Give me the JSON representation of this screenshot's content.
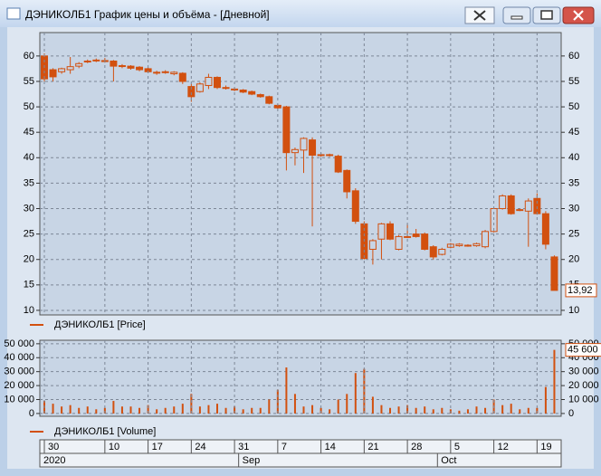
{
  "window": {
    "title": "ДЭНИКОЛБ1 График цены и объёма - [Дневной]"
  },
  "chart_data": [
    {
      "type": "candlestick",
      "series": [
        {
          "name": "ДЭНИКОЛБ1 [Price]",
          "color": "#d2500f",
          "open": [
            60,
            57.3,
            56.9,
            57.3,
            58,
            58.9,
            59.1,
            59.1,
            59,
            58,
            58,
            57.8,
            57.5,
            56.8,
            56.8,
            56.5,
            56.6,
            54,
            53,
            54.2,
            55.8,
            53.8,
            53.5,
            53.3,
            53,
            52.4,
            52,
            50.3,
            50,
            41,
            41.5,
            43.5,
            40.6,
            40.5,
            40.3,
            37.5,
            33.5,
            27,
            22,
            24,
            27,
            22,
            24.5,
            25,
            25,
            22.5,
            21,
            22.4,
            22.7,
            22.8,
            22.7,
            22.5,
            25.5,
            30,
            32.5,
            29.7,
            29.5,
            32,
            29,
            20.5
          ],
          "high": [
            60.5,
            57.6,
            57.7,
            59.8,
            58.8,
            59.3,
            59.5,
            59.6,
            59.2,
            58.4,
            58.2,
            58,
            57.7,
            57.1,
            57.2,
            57,
            56.8,
            54.5,
            54.8,
            56.5,
            56,
            54.2,
            53.8,
            53.5,
            53.2,
            52.6,
            52.2,
            50.5,
            50.2,
            42,
            44,
            44,
            40.9,
            40.8,
            40.6,
            37.7,
            34,
            27.5,
            24,
            27.2,
            27.5,
            24.8,
            27,
            26,
            25.3,
            22.8,
            22.3,
            23.2,
            23.2,
            23,
            23.3,
            25.8,
            30.2,
            32.8,
            32.8,
            30,
            32,
            33,
            29.5,
            20.8
          ],
          "low": [
            54.5,
            55,
            56.5,
            56.5,
            57.6,
            58.6,
            58.8,
            58.7,
            55,
            57.6,
            57.3,
            57,
            56.7,
            56.3,
            56.5,
            56.2,
            54.5,
            51,
            52.8,
            53.5,
            53.5,
            53.4,
            53.1,
            52.7,
            52.3,
            51.8,
            50.5,
            49.6,
            37.5,
            38.5,
            37,
            26.5,
            40.2,
            40.2,
            37,
            32,
            27,
            20,
            19,
            20,
            23.8,
            21.8,
            24.2,
            24.3,
            21.8,
            20,
            20.8,
            22.2,
            22.5,
            22.5,
            22.5,
            22.2,
            25.3,
            29.8,
            28.8,
            29.5,
            22.5,
            28.8,
            22,
            13.9
          ],
          "close": [
            55.5,
            55.9,
            57.5,
            57.9,
            58.5,
            59,
            59.2,
            58.9,
            58,
            58.1,
            57.6,
            57.3,
            56.9,
            56.7,
            56.9,
            56.8,
            55,
            52,
            54.5,
            55.8,
            53.8,
            53.7,
            53.4,
            52.9,
            52.5,
            52,
            50.7,
            49.8,
            41,
            41.6,
            43.8,
            40.5,
            40.5,
            40.6,
            37.2,
            33.3,
            27.5,
            20.2,
            23.7,
            27,
            24,
            24.5,
            24.5,
            24.5,
            22,
            20.5,
            22,
            23,
            23,
            22.8,
            23.1,
            25.5,
            30,
            32.5,
            29,
            29.8,
            31.5,
            29,
            23,
            13.92
          ],
          "value_labels": [
            null,
            null,
            null,
            null,
            null,
            null,
            null,
            null,
            null,
            null,
            null,
            null,
            null,
            null,
            null,
            null,
            null,
            null,
            null,
            null,
            null,
            null,
            null,
            null,
            null,
            null,
            null,
            null,
            null,
            null,
            null,
            null,
            null,
            null,
            null,
            null,
            null,
            null,
            null,
            null,
            null,
            null,
            null,
            null,
            null,
            null,
            null,
            null,
            null,
            null,
            null,
            null,
            null,
            null,
            null,
            null,
            null,
            null,
            null,
            "13,92"
          ]
        }
      ],
      "ylim": [
        9.1,
        64.6
      ],
      "yticks": [
        10,
        15,
        20,
        25,
        30,
        35,
        40,
        45,
        50,
        55,
        60
      ],
      "grid": true
    },
    {
      "type": "bar",
      "categories": [
        "30",
        null,
        null,
        null,
        null,
        null,
        null,
        "10",
        null,
        null,
        null,
        null,
        "17",
        null,
        null,
        null,
        null,
        "24",
        null,
        null,
        null,
        null,
        "31",
        null,
        null,
        null,
        null,
        "7",
        null,
        null,
        null,
        null,
        "14",
        null,
        null,
        null,
        null,
        "21",
        null,
        null,
        null,
        null,
        "28",
        null,
        null,
        null,
        null,
        "5",
        null,
        null,
        null,
        null,
        "12",
        null,
        null,
        null,
        null,
        "19",
        null,
        null
      ],
      "periods": [
        "2020",
        null,
        null,
        null,
        null,
        null,
        null,
        null,
        null,
        null,
        null,
        null,
        null,
        null,
        null,
        null,
        null,
        null,
        null,
        null,
        null,
        null,
        null,
        "Sep",
        null,
        null,
        null,
        null,
        null,
        null,
        null,
        null,
        null,
        null,
        null,
        null,
        null,
        null,
        null,
        null,
        null,
        null,
        null,
        null,
        null,
        null,
        "Oct",
        null,
        null,
        null,
        null,
        null,
        null,
        null,
        null,
        null,
        null,
        null,
        null,
        null
      ],
      "series": [
        {
          "name": "ДЭНИКОЛБ1 [Volume]",
          "color": "#d2500f",
          "values": [
            9000,
            7000,
            5000,
            6000,
            4000,
            5000,
            3000,
            4000,
            9000,
            5000,
            5000,
            4000,
            6000,
            3000,
            4000,
            5000,
            7000,
            14000,
            5000,
            6000,
            7000,
            4000,
            5000,
            3000,
            4000,
            4000,
            10000,
            17000,
            33000,
            14000,
            5000,
            6000,
            4000,
            3000,
            10000,
            14000,
            29000,
            32000,
            12000,
            6000,
            4000,
            5000,
            6000,
            4000,
            5000,
            3000,
            4000,
            3000,
            2000,
            3000,
            5000,
            4000,
            10000,
            6000,
            7000,
            3000,
            4000,
            4000,
            19000,
            45600
          ],
          "value_labels": [
            null,
            null,
            null,
            null,
            null,
            null,
            null,
            null,
            null,
            null,
            null,
            null,
            null,
            null,
            null,
            null,
            null,
            null,
            null,
            null,
            null,
            null,
            null,
            null,
            null,
            null,
            null,
            null,
            null,
            null,
            null,
            null,
            null,
            null,
            null,
            null,
            null,
            null,
            null,
            null,
            null,
            null,
            null,
            null,
            null,
            null,
            null,
            null,
            null,
            null,
            null,
            null,
            null,
            null,
            null,
            null,
            null,
            null,
            null,
            "45 600"
          ]
        }
      ],
      "ylim": [
        -2000,
        52500
      ],
      "yticks": [
        0,
        {
          "value": 10000,
          "label": "10 000"
        },
        {
          "value": 20000,
          "label": "20 000"
        },
        {
          "value": 30000,
          "label": "30 000"
        },
        {
          "value": 40000,
          "label": "40 000"
        },
        {
          "value": 50000,
          "label": "50 000"
        }
      ],
      "grid": true
    }
  ]
}
